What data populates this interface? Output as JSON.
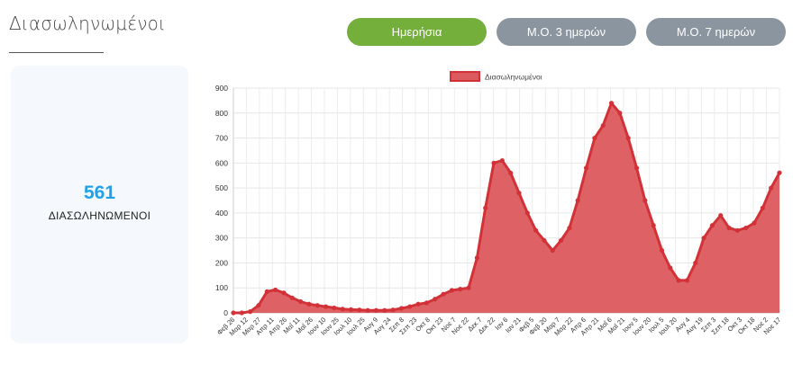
{
  "header": {
    "title": "Διασωληνωμένοι"
  },
  "tabs": [
    {
      "label": "Ημερήσια",
      "active": true
    },
    {
      "label": "Μ.Ο. 3 ημερών",
      "active": false
    },
    {
      "label": "Μ.Ο. 7 ημερών",
      "active": false
    }
  ],
  "stat": {
    "value": "561",
    "label": "ΔΙΑΣΩΛΗΝΩΜΕΝΟΙ"
  },
  "colors": {
    "accent_active": "#74ae3b",
    "tab_inactive": "#8a959f",
    "stat_value": "#1ea1e6",
    "series_fill": "#dc5a5d",
    "series_line": "#d23237"
  },
  "chart_data": {
    "type": "area",
    "title": "",
    "legend": {
      "position": "top-center",
      "entries": [
        "Διασωληνωμένοι"
      ]
    },
    "grid": true,
    "ylim": [
      0,
      900
    ],
    "y_ticks": [
      0,
      100,
      200,
      300,
      400,
      500,
      600,
      700,
      800,
      900
    ],
    "x_range": [
      "2020-02-26",
      "2021-11-17"
    ],
    "x_tick_labels": [
      "Φεβ 26",
      "Μαρ 12",
      "Μαρ 27",
      "Απρ 11",
      "Απρ 26",
      "Μαΐ 11",
      "Μαΐ 26",
      "Ιουν 10",
      "Ιουν 25",
      "Ιουλ 10",
      "Ιουλ 25",
      "Αυγ 9",
      "Αυγ 24",
      "Σεπ 8",
      "Σεπ 23",
      "Οκτ 8",
      "Οκτ 23",
      "Νοε 7",
      "Νοε 22",
      "Δεκ 7",
      "Δεκ 22",
      "Ιαν 6",
      "Ιαν 21",
      "Φεβ 5",
      "Φεβ 20",
      "Μαρ 7",
      "Μαρ 22",
      "Απρ 6",
      "Απρ 21",
      "Μαΐ 6",
      "Μαΐ 21",
      "Ιουν 5",
      "Ιουν 20",
      "Ιουλ 5",
      "Ιουλ 20",
      "Αυγ 4",
      "Αυγ 19",
      "Σεπ 3",
      "Σεπ 18",
      "Οκτ 3",
      "Οκτ 18",
      "Νοε 2",
      "Νοε 17"
    ],
    "series": [
      {
        "name": "Διασωληνωμένοι",
        "values": [
          0,
          0,
          5,
          30,
          85,
          92,
          80,
          60,
          45,
          35,
          30,
          25,
          20,
          15,
          13,
          12,
          10,
          10,
          10,
          12,
          18,
          25,
          35,
          40,
          55,
          75,
          90,
          95,
          100,
          220,
          420,
          600,
          610,
          560,
          480,
          400,
          330,
          290,
          250,
          290,
          340,
          450,
          580,
          700,
          750,
          840,
          800,
          700,
          580,
          450,
          350,
          250,
          180,
          130,
          130,
          200,
          300,
          350,
          390,
          340,
          330,
          340,
          360,
          420,
          500,
          561
        ]
      }
    ]
  }
}
